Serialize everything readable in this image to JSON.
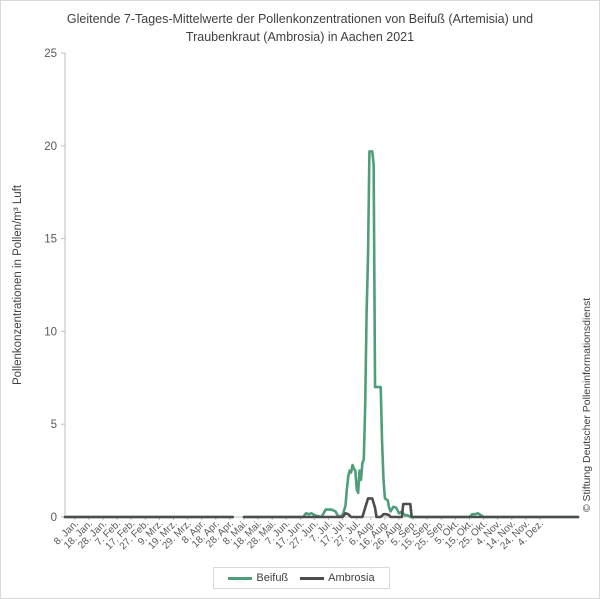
{
  "chart_data": {
    "type": "line",
    "title_line1": "Gleitende 7-Tages-Mittelwerte der Pollenkonzentrationen von Beifuß (Artemisia) und",
    "title_line2": "Traubenkraut (Ambrosia) in Aachen 2021",
    "ylabel": "Pollenkonzentrationen in Pollen/m³ Luft",
    "xlabel": "",
    "ylim": [
      0,
      25
    ],
    "yticks": [
      "0",
      "5",
      "10",
      "15",
      "20",
      "25"
    ],
    "ytick_values": [
      0,
      5,
      10,
      15,
      20,
      25
    ],
    "grid": false,
    "legend_position": "bottom",
    "categories": [
      "8. Jan.",
      "18. Jan.",
      "28. Jan.",
      "7. Feb.",
      "17. Feb.",
      "27. Feb.",
      "9. Mrz.",
      "19. Mrz.",
      "29. Mrz.",
      "8. Apr.",
      "18. Apr.",
      "28. Apr.",
      "8. Mai.",
      "18. Mai.",
      "28. Mai.",
      "7. Jun.",
      "17. Jun.",
      "27. Jun.",
      "7. Jul.",
      "17. Jul.",
      "27. Jul.",
      "6. Aug.",
      "16. Aug.",
      "26. Aug.",
      "5. Sep.",
      "15. Sep.",
      "25. Sep.",
      "5. Okt.",
      "15. Okt.",
      "25. Okt.",
      "4. Nov.",
      "14. Nov.",
      "24. Nov.",
      "4. Dez."
    ],
    "x_start_day": 1,
    "x_end_day": 365,
    "series": [
      {
        "name": "Beifuß",
        "color": "#4e9e7a",
        "segments": [
          [
            [
              1,
              0
            ],
            [
              120,
              0
            ]
          ],
          [
            [
              128,
              0
            ],
            [
              170,
              0
            ],
            [
              172,
              0.2
            ],
            [
              174,
              0.15
            ],
            [
              176,
              0.2
            ],
            [
              178,
              0.1
            ],
            [
              180,
              0.05
            ],
            [
              183,
              0
            ],
            [
              186,
              0.4
            ],
            [
              190,
              0.4
            ],
            [
              193,
              0.3
            ],
            [
              195,
              0
            ],
            [
              198,
              0.1
            ],
            [
              200,
              0.6
            ],
            [
              201,
              1.5
            ],
            [
              202,
              2.2
            ],
            [
              203,
              2.5
            ],
            [
              204,
              2.4
            ],
            [
              205,
              2.8
            ],
            [
              206,
              2.6
            ],
            [
              207,
              2.5
            ],
            [
              208,
              1.5
            ],
            [
              209,
              1.3
            ],
            [
              210,
              2.5
            ],
            [
              211,
              2.0
            ],
            [
              212,
              2.9
            ],
            [
              213,
              3.1
            ],
            [
              214,
              6.0
            ],
            [
              215,
              11.0
            ],
            [
              216,
              14.0
            ],
            [
              217,
              19.7
            ],
            [
              218,
              19.7
            ],
            [
              219,
              19.7
            ],
            [
              220,
              19.0
            ],
            [
              221,
              7.0
            ],
            [
              223,
              7.0
            ],
            [
              225,
              7.0
            ],
            [
              226,
              4.0
            ],
            [
              227,
              2.0
            ],
            [
              228,
              1.0
            ],
            [
              230,
              0.9
            ],
            [
              231,
              0.5
            ],
            [
              232,
              0.3
            ],
            [
              234,
              0.55
            ],
            [
              236,
              0.5
            ],
            [
              238,
              0.2
            ],
            [
              240,
              0.3
            ],
            [
              242,
              0.1
            ],
            [
              244,
              0.1
            ],
            [
              246,
              0
            ],
            [
              275,
              0
            ],
            [
              288,
              0
            ],
            [
              290,
              0.15
            ],
            [
              292,
              0.15
            ],
            [
              294,
              0.2
            ],
            [
              296,
              0.1
            ],
            [
              298,
              0
            ],
            [
              365,
              0
            ]
          ]
        ]
      },
      {
        "name": "Ambrosia",
        "color": "#4d4d4d",
        "segments": [
          [
            [
              1,
              0
            ],
            [
              120,
              0
            ]
          ],
          [
            [
              128,
              0
            ],
            [
              198,
              0
            ],
            [
              200,
              0.2
            ],
            [
              202,
              0.15
            ],
            [
              204,
              0
            ],
            [
              212,
              0
            ],
            [
              214,
              0.5
            ],
            [
              216,
              1.0
            ],
            [
              219,
              1.0
            ],
            [
              221,
              0.5
            ],
            [
              222,
              0
            ],
            [
              225,
              0
            ],
            [
              227,
              0.15
            ],
            [
              229,
              0.15
            ],
            [
              231,
              0.1
            ],
            [
              232,
              0
            ],
            [
              240,
              0
            ],
            [
              241,
              0.7
            ],
            [
              244,
              0.7
            ],
            [
              246,
              0.7
            ],
            [
              247,
              0
            ],
            [
              365,
              0
            ]
          ]
        ]
      }
    ]
  },
  "copyright": "© Stiftung Deutscher Polleninformationsdienst"
}
